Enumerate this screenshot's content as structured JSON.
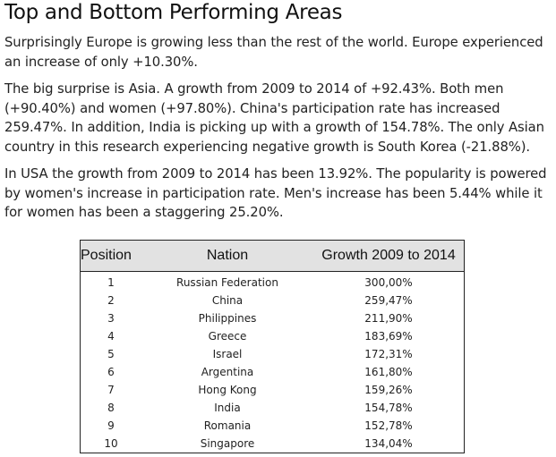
{
  "heading": "Top and Bottom Performing Areas",
  "paragraphs": [
    "Surprisingly Europe is growing less than the rest of the world. Europe experienced an increase of only +10.30%.",
    "The big surprise is Asia. A growth from 2009 to 2014 of +92.43%. Both men (+90.40%) and women (+97.80%). China's participation rate has increased 259.47%. In addition, India is picking up with a growth of 154.78%. The only Asian country in this research experiencing negative growth is South Korea (-21.88%).",
    "In USA the growth from 2009 to 2014 has been 13.92%. The popularity is powered by women's increase in participation rate. Men's increase has been 5.44% while it for women has been a staggering 25.20%."
  ],
  "table": {
    "headers": [
      "Position",
      "Nation",
      "Growth 2009 to 2014"
    ],
    "rows": [
      {
        "position": "1",
        "nation": "Russian Federation",
        "growth": "300,00%"
      },
      {
        "position": "2",
        "nation": "China",
        "growth": "259,47%"
      },
      {
        "position": "3",
        "nation": "Philippines",
        "growth": "211,90%"
      },
      {
        "position": "4",
        "nation": "Greece",
        "growth": "183,69%"
      },
      {
        "position": "5",
        "nation": "Israel",
        "growth": "172,31%"
      },
      {
        "position": "6",
        "nation": "Argentina",
        "growth": "161,80%"
      },
      {
        "position": "7",
        "nation": "Hong Kong",
        "growth": "159,26%"
      },
      {
        "position": "8",
        "nation": "India",
        "growth": "154,78%"
      },
      {
        "position": "9",
        "nation": "Romania",
        "growth": "152,78%"
      },
      {
        "position": "10",
        "nation": "Singapore",
        "growth": "134,04%"
      }
    ]
  }
}
